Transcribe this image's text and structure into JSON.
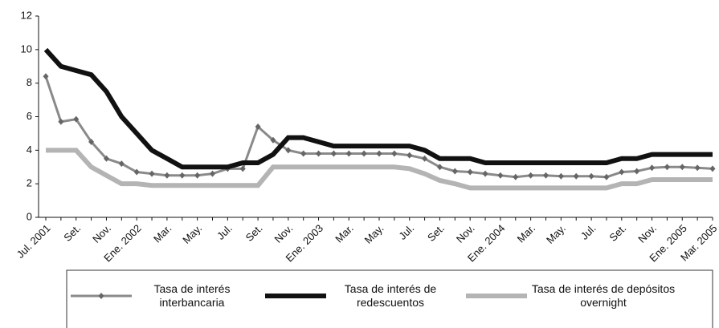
{
  "chart_data": {
    "type": "line",
    "categories": [
      "Jul. 2001",
      null,
      "Set.",
      null,
      "Nov.",
      null,
      "Ene. 2002",
      null,
      "Mar.",
      null,
      "May.",
      null,
      "Jul.",
      null,
      "Set.",
      null,
      "Nov.",
      null,
      "Ene. 2003",
      null,
      "Mar.",
      null,
      "May.",
      null,
      "Jul.",
      null,
      "Set.",
      null,
      "Nov.",
      null,
      "Ene. 2004",
      null,
      "Mar.",
      null,
      "May.",
      null,
      "Jul.",
      null,
      "Set.",
      null,
      "Nov.",
      null,
      "Ene. 2005",
      null,
      "Mar. 2005"
    ],
    "series": [
      {
        "name": "Tasa de interés interbancaria",
        "color": "#8a8a8a",
        "marker": "diamond",
        "values": [
          8.4,
          5.7,
          5.85,
          4.5,
          3.5,
          3.2,
          2.7,
          2.6,
          2.5,
          2.5,
          2.5,
          2.6,
          2.9,
          2.9,
          5.4,
          4.6,
          4.0,
          3.8,
          3.8,
          3.8,
          3.8,
          3.8,
          3.8,
          3.8,
          3.7,
          3.5,
          3.0,
          2.75,
          2.7,
          2.6,
          2.5,
          2.4,
          2.5,
          2.5,
          2.45,
          2.45,
          2.45,
          2.4,
          2.7,
          2.75,
          2.95,
          3.0,
          3.0,
          2.95,
          2.9
        ]
      },
      {
        "name": "Tasa de interés de redescuentos",
        "color": "#111111",
        "values": [
          10,
          9,
          8.75,
          8.5,
          7.5,
          6,
          5,
          4,
          3.5,
          3,
          3,
          3,
          3,
          3.25,
          3.25,
          3.75,
          4.75,
          4.75,
          4.5,
          4.25,
          4.25,
          4.25,
          4.25,
          4.25,
          4.25,
          4.0,
          3.5,
          3.5,
          3.5,
          3.25,
          3.25,
          3.25,
          3.25,
          3.25,
          3.25,
          3.25,
          3.25,
          3.25,
          3.5,
          3.5,
          3.75,
          3.75,
          3.75,
          3.75,
          3.75
        ]
      },
      {
        "name": "Tasa de interés de depósitos overnight",
        "color": "#b4b4b4",
        "values": [
          4,
          4,
          4,
          3,
          2.5,
          2.0,
          2.0,
          1.9,
          1.9,
          1.9,
          1.9,
          1.9,
          1.9,
          1.9,
          1.9,
          3.0,
          3.0,
          3.0,
          3,
          3,
          3,
          3,
          3,
          3,
          2.9,
          2.6,
          2.2,
          2.0,
          1.75,
          1.75,
          1.75,
          1.75,
          1.75,
          1.75,
          1.75,
          1.75,
          1.75,
          1.75,
          2.0,
          2.0,
          2.25,
          2.25,
          2.25,
          2.25,
          2.25
        ]
      }
    ],
    "ylim": [
      0,
      12
    ],
    "yticks": [
      0,
      2,
      4,
      6,
      8,
      10,
      12
    ],
    "grid": false
  }
}
